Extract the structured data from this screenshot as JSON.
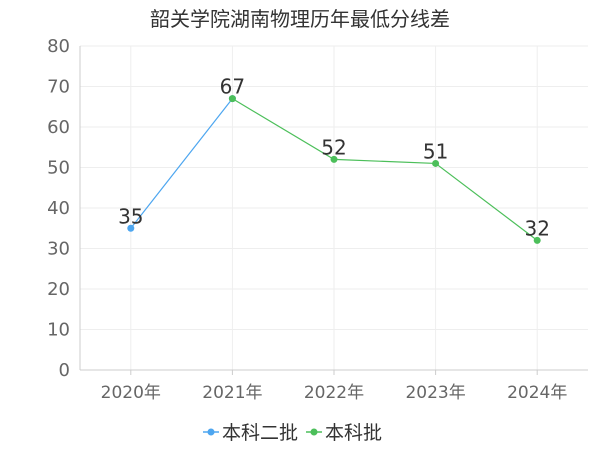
{
  "chart_data": {
    "type": "line",
    "title": "韶关学院湖南物理历年最低分线差",
    "categories": [
      "2020年",
      "2021年",
      "2022年",
      "2023年",
      "2024年"
    ],
    "ylim": [
      0,
      80
    ],
    "yticks": [
      "0",
      "10",
      "20",
      "30",
      "40",
      "50",
      "60",
      "70",
      "80"
    ],
    "grid": true,
    "legend_position": "bottom-center",
    "series": [
      {
        "name": "本科二批",
        "color": "#4da6f0",
        "values": [
          35,
          67,
          null,
          null,
          null
        ],
        "labels": [
          "35",
          "67",
          "",
          "",
          ""
        ]
      },
      {
        "name": "本科批",
        "color": "#4cbf5a",
        "values": [
          null,
          67,
          52,
          51,
          32
        ],
        "labels": [
          "",
          "",
          "52",
          "51",
          "32"
        ]
      }
    ]
  }
}
